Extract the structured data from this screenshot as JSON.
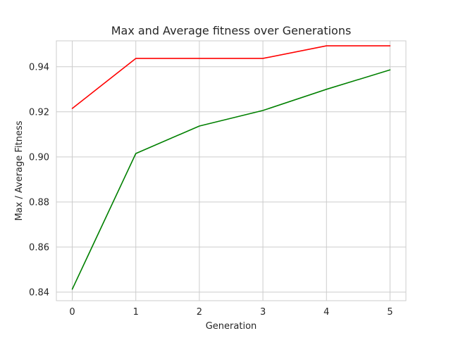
{
  "chart_data": {
    "type": "line",
    "title": "Max and Average fitness over Generations",
    "xlabel": "Generation",
    "ylabel": "Max / Average Fitness",
    "x": [
      0,
      1,
      2,
      3,
      4,
      5
    ],
    "xticks": [
      "0",
      "1",
      "2",
      "3",
      "4",
      "5"
    ],
    "yticks": [
      "0.84",
      "0.86",
      "0.88",
      "0.90",
      "0.92",
      "0.94"
    ],
    "xlim": [
      -0.25,
      5.25
    ],
    "ylim": [
      0.8362,
      0.9515
    ],
    "grid": true,
    "series": [
      {
        "color": "#ff0000",
        "values": [
          0.9215,
          0.9437,
          0.9437,
          0.9437,
          0.9493,
          0.9493
        ]
      },
      {
        "color": "#008000",
        "values": [
          0.8413,
          0.9015,
          0.9137,
          0.9206,
          0.93,
          0.9386
        ]
      }
    ]
  }
}
